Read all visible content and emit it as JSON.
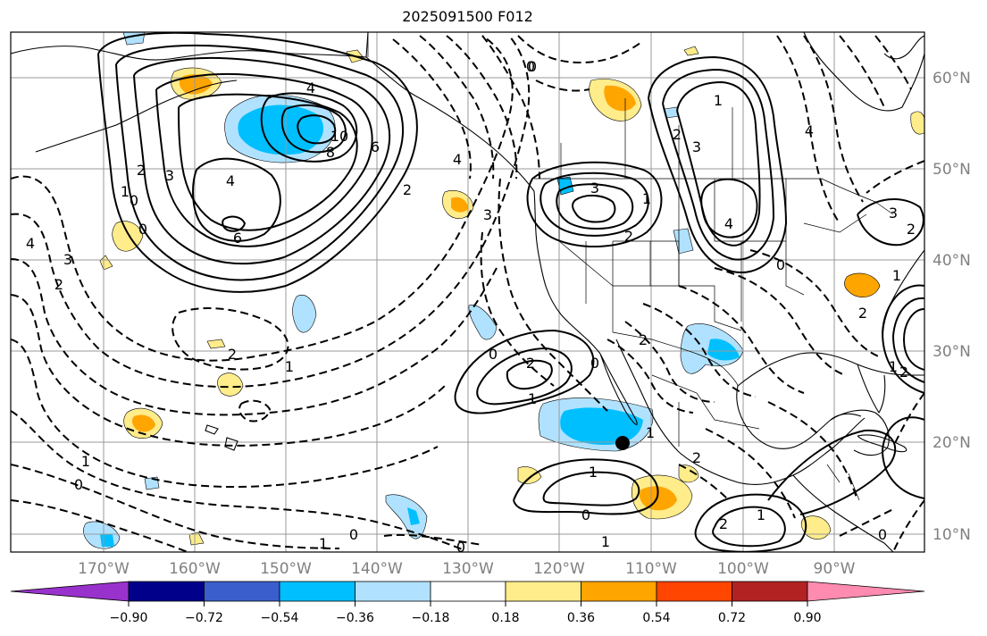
{
  "title": "2025091500 F012",
  "lat_labels": [
    "60°N",
    "50°N",
    "40°N",
    "30°N",
    "20°N",
    "10°N"
  ],
  "lon_labels": [
    "170°W",
    "160°W",
    "150°W",
    "140°W",
    "130°W",
    "120°W",
    "110°W",
    "100°W",
    "90°W"
  ],
  "colorbar": {
    "colors": [
      "#9932cc",
      "#00008b",
      "#3a5fcd",
      "#00bfff",
      "#b0e2ff",
      "#ffffff",
      "#ffec8b",
      "#ffa500",
      "#ff4500",
      "#b22222",
      "#ff8bb0"
    ],
    "tick_labels": [
      "−0.90",
      "−0.72",
      "−0.54",
      "−0.36",
      "−0.18",
      "0.18",
      "0.36",
      "0.54",
      "0.72",
      "0.90"
    ]
  },
  "contour_labels": [
    "4",
    "10",
    "8",
    "6",
    "3",
    "2",
    "4",
    "6",
    "0",
    "3",
    "2",
    "1",
    "0",
    "4",
    "3",
    "2",
    "4",
    "2",
    "0",
    "0",
    "2",
    "1",
    "1",
    "0",
    "2",
    "1",
    "0",
    "2",
    "1",
    "0",
    "2",
    "1",
    "1",
    "0",
    "1",
    "0",
    "3",
    "2",
    "1",
    "1",
    "0",
    "1",
    "2",
    "1",
    "0",
    "2",
    "0",
    "4",
    "3",
    "2",
    "3",
    "4",
    "2",
    "1"
  ],
  "icons": [
    "marker-dot"
  ]
}
